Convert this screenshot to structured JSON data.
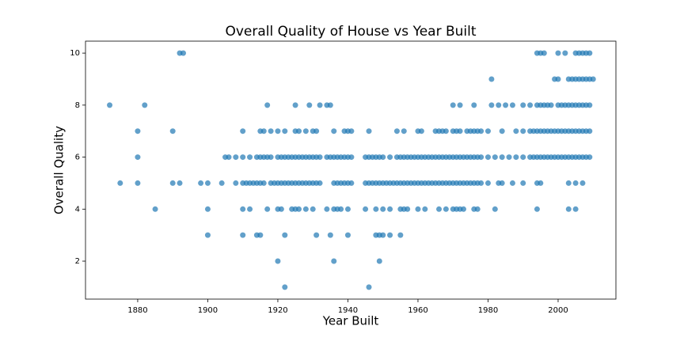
{
  "chart_data": {
    "type": "scatter",
    "title": "Overall Quality of House vs Year Built",
    "x_label": "Year Built",
    "y_label": "Overall Quality",
    "color": "#1f77b4",
    "xlim": [
      1865.1,
      2016.5
    ],
    "ylim": [
      0.54,
      10.46
    ],
    "xticks": [
      1880,
      1900,
      1920,
      1940,
      1960,
      1980,
      2000
    ],
    "yticks": [
      2,
      4,
      6,
      8,
      10
    ],
    "x": [
      1892,
      1893,
      1994,
      1995,
      1996,
      2000,
      2002,
      2005,
      2006,
      2007,
      2008,
      2009,
      1981,
      1999,
      2000,
      2003,
      2004,
      2005,
      2006,
      2007,
      2008,
      2009,
      2010,
      1872,
      1882,
      1917,
      1925,
      1929,
      1932,
      1934,
      1935,
      1970,
      1972,
      1976,
      1981,
      1983,
      1985,
      1987,
      1990,
      1992,
      1994,
      1995,
      1996,
      1997,
      1998,
      2000,
      2001,
      2002,
      2003,
      2004,
      2005,
      2006,
      2007,
      2008,
      2009,
      1880,
      1890,
      1910,
      1915,
      1916,
      1918,
      1920,
      1922,
      1925,
      1926,
      1928,
      1930,
      1931,
      1936,
      1939,
      1940,
      1941,
      1946,
      1954,
      1956,
      1960,
      1961,
      1965,
      1966,
      1967,
      1968,
      1970,
      1971,
      1972,
      1974,
      1975,
      1976,
      1977,
      1978,
      1980,
      1984,
      1988,
      1990,
      1992,
      1993,
      1994,
      1995,
      1996,
      1997,
      1998,
      1999,
      2000,
      2001,
      2002,
      2003,
      2004,
      2005,
      2006,
      2007,
      2008,
      2009,
      1880,
      1905,
      1906,
      1908,
      1910,
      1912,
      1914,
      1915,
      1916,
      1917,
      1918,
      1920,
      1921,
      1922,
      1923,
      1924,
      1925,
      1926,
      1927,
      1928,
      1929,
      1930,
      1931,
      1932,
      1934,
      1935,
      1936,
      1937,
      1939,
      1940,
      1941,
      1945,
      1946,
      1947,
      1948,
      1949,
      1950,
      1952,
      1954,
      1955,
      1956,
      1957,
      1958,
      1959,
      1960,
      1961,
      1962,
      1963,
      1964,
      1965,
      1966,
      1967,
      1968,
      1969,
      1970,
      1971,
      1972,
      1973,
      1974,
      1975,
      1976,
      1977,
      1978,
      1980,
      1982,
      1984,
      1986,
      1988,
      1990,
      1992,
      1993,
      1994,
      1995,
      1996,
      1997,
      1998,
      1999,
      2000,
      2001,
      2002,
      2003,
      2004,
      2005,
      2006,
      2007,
      2008,
      2009,
      1938,
      1875,
      1880,
      1890,
      1892,
      1898,
      1900,
      1904,
      1908,
      1910,
      1911,
      1912,
      1913,
      1914,
      1915,
      1916,
      1918,
      1919,
      1920,
      1921,
      1922,
      1923,
      1924,
      1925,
      1926,
      1927,
      1928,
      1929,
      1930,
      1931,
      1932,
      1936,
      1937,
      1938,
      1939,
      1940,
      1941,
      1945,
      1946,
      1947,
      1948,
      1949,
      1950,
      1951,
      1952,
      1953,
      1954,
      1955,
      1956,
      1957,
      1958,
      1959,
      1960,
      1961,
      1962,
      1963,
      1964,
      1965,
      1966,
      1967,
      1968,
      1969,
      1970,
      1971,
      1972,
      1973,
      1974,
      1975,
      1976,
      1977,
      1978,
      1980,
      1983,
      1984,
      1987,
      1990,
      1994,
      1995,
      2003,
      2005,
      2007,
      1885,
      1900,
      1910,
      1912,
      1917,
      1920,
      1921,
      1924,
      1925,
      1926,
      1928,
      1930,
      1934,
      1936,
      1937,
      1938,
      1940,
      1945,
      1948,
      1950,
      1952,
      1955,
      1956,
      1957,
      1960,
      1962,
      1966,
      1968,
      1970,
      1971,
      1972,
      1973,
      1976,
      1977,
      1982,
      1994,
      2003,
      2005,
      1900,
      1910,
      1914,
      1915,
      1922,
      1931,
      1935,
      1940,
      1948,
      1949,
      1950,
      1952,
      1955,
      1920,
      1936,
      1949,
      1922,
      1946
    ],
    "values": [
      10,
      10,
      10,
      10,
      10,
      10,
      10,
      10,
      10,
      10,
      10,
      10,
      9,
      9,
      9,
      9,
      9,
      9,
      9,
      9,
      9,
      9,
      9,
      8,
      8,
      8,
      8,
      8,
      8,
      8,
      8,
      8,
      8,
      8,
      8,
      8,
      8,
      8,
      8,
      8,
      8,
      8,
      8,
      8,
      8,
      8,
      8,
      8,
      8,
      8,
      8,
      8,
      8,
      8,
      8,
      7,
      7,
      7,
      7,
      7,
      7,
      7,
      7,
      7,
      7,
      7,
      7,
      7,
      7,
      7,
      7,
      7,
      7,
      7,
      7,
      7,
      7,
      7,
      7,
      7,
      7,
      7,
      7,
      7,
      7,
      7,
      7,
      7,
      7,
      7,
      7,
      7,
      7,
      7,
      7,
      7,
      7,
      7,
      7,
      7,
      7,
      7,
      7,
      7,
      7,
      7,
      7,
      7,
      7,
      7,
      7,
      6,
      6,
      6,
      6,
      6,
      6,
      6,
      6,
      6,
      6,
      6,
      6,
      6,
      6,
      6,
      6,
      6,
      6,
      6,
      6,
      6,
      6,
      6,
      6,
      6,
      6,
      6,
      6,
      6,
      6,
      6,
      6,
      6,
      6,
      6,
      6,
      6,
      6,
      6,
      6,
      6,
      6,
      6,
      6,
      6,
      6,
      6,
      6,
      6,
      6,
      6,
      6,
      6,
      6,
      6,
      6,
      6,
      6,
      6,
      6,
      6,
      6,
      6,
      6,
      6,
      6,
      6,
      6,
      6,
      6,
      6,
      6,
      6,
      6,
      6,
      6,
      6,
      6,
      6,
      6,
      6,
      6,
      6,
      6,
      6,
      6,
      6,
      6,
      5,
      5,
      5,
      5,
      5,
      5,
      5,
      5,
      5,
      5,
      5,
      5,
      5,
      5,
      5,
      5,
      5,
      5,
      5,
      5,
      5,
      5,
      5,
      5,
      5,
      5,
      5,
      5,
      5,
      5,
      5,
      5,
      5,
      5,
      5,
      5,
      5,
      5,
      5,
      5,
      5,
      5,
      5,
      5,
      5,
      5,
      5,
      5,
      5,
      5,
      5,
      5,
      5,
      5,
      5,
      5,
      5,
      5,
      5,
      5,
      5,
      5,
      5,
      5,
      5,
      5,
      5,
      5,
      5,
      5,
      5,
      5,
      5,
      5,
      5,
      5,
      5,
      5,
      5,
      5,
      4,
      4,
      4,
      4,
      4,
      4,
      4,
      4,
      4,
      4,
      4,
      4,
      4,
      4,
      4,
      4,
      4,
      4,
      4,
      4,
      4,
      4,
      4,
      4,
      4,
      4,
      4,
      4,
      4,
      4,
      4,
      4,
      4,
      4,
      4,
      4,
      4,
      4,
      3,
      3,
      3,
      3,
      3,
      3,
      3,
      3,
      3,
      3,
      3,
      3,
      3,
      2,
      2,
      2,
      1,
      1
    ]
  }
}
